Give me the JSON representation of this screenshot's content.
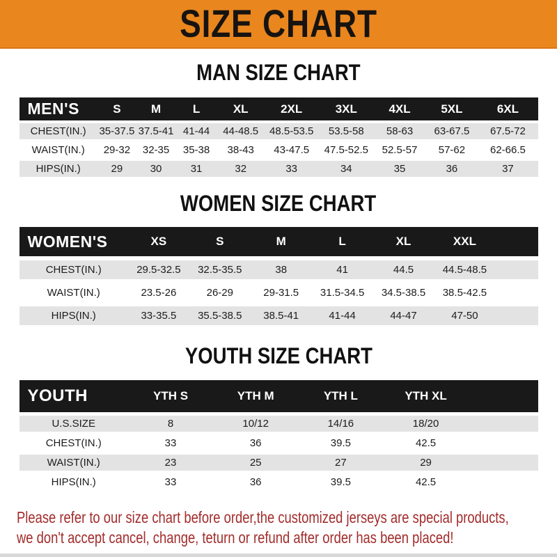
{
  "banner": {
    "title": "SIZE CHART"
  },
  "sections": [
    {
      "heading": "MAN SIZE CHART",
      "header": {
        "label": "MEN'S",
        "cols": [
          "S",
          "M",
          "L",
          "XL",
          "2XL",
          "3XL",
          "4XL",
          "5XL",
          "6XL"
        ]
      },
      "rows": [
        {
          "label": "CHEST(IN.)",
          "values": [
            "35-37.5",
            "37.5-41",
            "41-44",
            "44-48.5",
            "48.5-53.5",
            "53.5-58",
            "58-63",
            "63-67.5",
            "67.5-72"
          ]
        },
        {
          "label": "WAIST(IN.)",
          "values": [
            "29-32",
            "32-35",
            "35-38",
            "38-43",
            "43-47.5",
            "47.5-52.5",
            "52.5-57",
            "57-62",
            "62-66.5"
          ]
        },
        {
          "label": "HIPS(IN.)",
          "values": [
            "29",
            "30",
            "31",
            "32",
            "33",
            "34",
            "35",
            "36",
            "37"
          ]
        }
      ]
    },
    {
      "heading": "WOMEN SIZE CHART",
      "header": {
        "label": "WOMEN'S",
        "cols": [
          "XS",
          "S",
          "M",
          "L",
          "XL",
          "XXL"
        ]
      },
      "rows": [
        {
          "label": "CHEST(IN.)",
          "values": [
            "29.5-32.5",
            "32.5-35.5",
            "38",
            "41",
            "44.5",
            "44.5-48.5"
          ]
        },
        {
          "label": "WAIST(IN.)",
          "values": [
            "23.5-26",
            "26-29",
            "29-31.5",
            "31.5-34.5",
            "34.5-38.5",
            "38.5-42.5"
          ]
        },
        {
          "label": "HIPS(IN.)",
          "values": [
            "33-35.5",
            "35.5-38.5",
            "38.5-41",
            "41-44",
            "44-47",
            "47-50"
          ]
        }
      ]
    },
    {
      "heading": "YOUTH SIZE CHART",
      "header": {
        "label": "YOUTH",
        "cols": [
          "YTH S",
          "YTH M",
          "YTH L",
          "YTH XL"
        ]
      },
      "rows": [
        {
          "label": "U.S.SIZE",
          "values": [
            "8",
            "10/12",
            "14/16",
            "18/20"
          ]
        },
        {
          "label": "CHEST(IN.)",
          "values": [
            "33",
            "36",
            "39.5",
            "42.5"
          ]
        },
        {
          "label": "WAIST(IN.)",
          "values": [
            "23",
            "25",
            "27",
            "29"
          ]
        },
        {
          "label": "HIPS(IN.)",
          "values": [
            "33",
            "36",
            "39.5",
            "42.5"
          ]
        }
      ]
    }
  ],
  "disclaimer": {
    "line1": "Please refer to our size chart before order,the customized jerseys are special products,",
    "line2": "we don't accept cancel, change, teturn or refund after order has been placed!"
  },
  "colors": {
    "banner_orange": "#E9861E",
    "header_bar_black": "#191919",
    "row_gray": "#E3E3E3",
    "disclaimer_red": "#A22C2C"
  }
}
